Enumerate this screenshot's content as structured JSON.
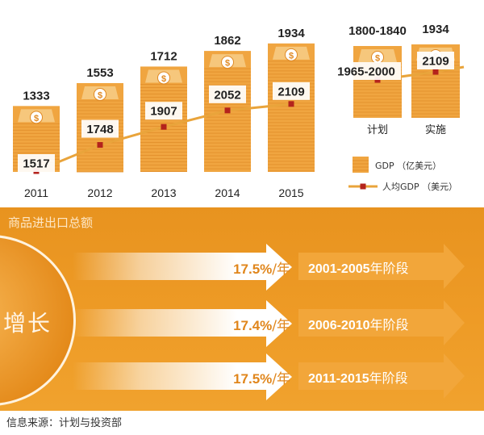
{
  "chart_data": [
    {
      "type": "bar",
      "categories": [
        "2011",
        "2012",
        "2013",
        "2014",
        "2015"
      ],
      "series": [
        {
          "name": "GDP（亿美元）",
          "values": [
            1333,
            1553,
            1712,
            1862,
            1934
          ]
        },
        {
          "name": "人均GDP（美元）",
          "type": "line",
          "values": [
            1517,
            1748,
            1907,
            2052,
            2109
          ]
        }
      ],
      "labels": {
        "bars": [
          "1333",
          "1553",
          "1712",
          "1862",
          "1934"
        ],
        "line": [
          "1517",
          "1748",
          "1907",
          "2052",
          "2109"
        ]
      },
      "legend_position": "right"
    },
    {
      "type": "bar",
      "categories": [
        "计划",
        "实施"
      ],
      "series": [
        {
          "name": "GDP（亿美元）",
          "values": [
            "1800-1840",
            1934
          ]
        },
        {
          "name": "人均GDP（美元）",
          "type": "line",
          "values": [
            "1965-2000",
            2109
          ]
        }
      ],
      "labels": {
        "bars": [
          "1800-1840",
          "1934"
        ],
        "line": [
          "1965-2000",
          "2109"
        ]
      }
    }
  ],
  "legend": {
    "gdp": "GDP （亿美元）",
    "per_capita": "人均GDP （美元）"
  },
  "colors": {
    "bar": "#f0a540",
    "bar_top": "#f6c77c",
    "line": "#e9a43b",
    "marker": "#b4231c",
    "panel": "#ee9b26"
  },
  "trade": {
    "title": "商品进出口总额",
    "circle_label": "增长",
    "rows": [
      {
        "rate": "17.5%",
        "unit": "/年",
        "period_years": "2001-2005",
        "period_suffix": "年阶段"
      },
      {
        "rate": "17.4%",
        "unit": "/年",
        "period_years": "2006-2010",
        "period_suffix": "年阶段"
      },
      {
        "rate": "17.5%",
        "unit": "/年",
        "period_years": "2011-2015",
        "period_suffix": "年阶段"
      }
    ]
  },
  "source": "信息来源：计划与投资部"
}
